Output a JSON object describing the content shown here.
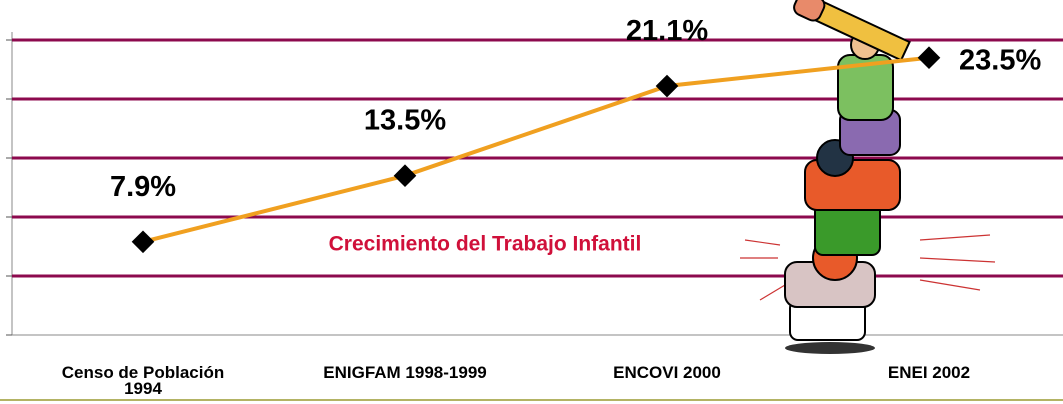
{
  "chart_data": {
    "type": "line",
    "categories": [
      "Censo de Población 1994",
      "ENIGFAM 1998-1999",
      "ENCOVI 2000",
      "ENEI   2002"
    ],
    "series": [
      {
        "color": "#f0a020",
        "values": [
          7.9,
          13.5,
          21.1,
          23.5
        ],
        "value_labels": [
          "7.9%",
          "13.5%",
          "21.1%",
          "23.5%"
        ]
      }
    ],
    "annotation": "Crecimiento del Trabajo Infantil",
    "ylim": [
      0,
      25
    ],
    "yticks": [
      0,
      5,
      10,
      15,
      20,
      25
    ],
    "grid": true,
    "grid_color": "#8c0a4e"
  }
}
